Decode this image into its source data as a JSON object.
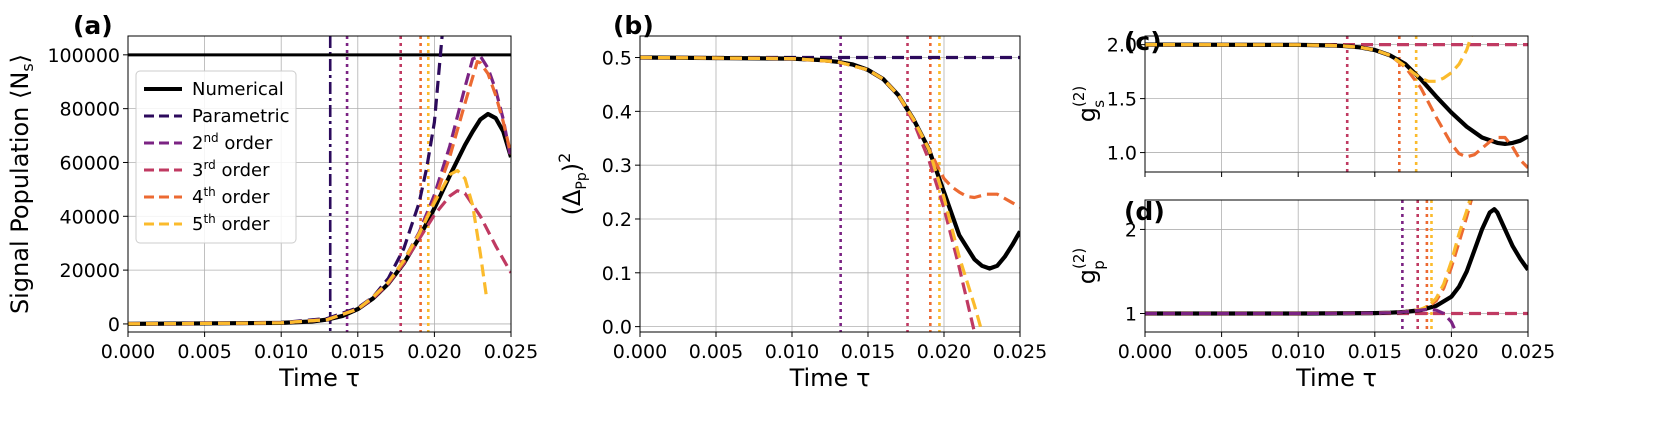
{
  "colors": {
    "numerical": "#000000",
    "parametric": "#2c0a5c",
    "order2": "#7b2383",
    "order3": "#c03a62",
    "order4": "#ec6a32",
    "order5": "#fbbb2c",
    "grid": "#b0b0b0"
  },
  "chart_data": [
    {
      "panel": "(a)",
      "type": "line",
      "xlabel": "Time τ",
      "ylabel": "Signal Population ⟨N",
      "ylabel_sub": "s",
      "ylabel_close": "⟩",
      "xlim": [
        0,
        0.025
      ],
      "ylim": [
        -3000,
        107000
      ],
      "xticks": [
        "0.000",
        "0.005",
        "0.010",
        "0.015",
        "0.020",
        "0.025"
      ],
      "yticks": [
        0,
        20000,
        40000,
        60000,
        80000,
        100000
      ],
      "ytick_labels": [
        "0",
        "20000",
        "40000",
        "60000",
        "80000",
        "100000"
      ],
      "grid": true,
      "legend_position": "center-left",
      "legend": [
        {
          "key": "numerical",
          "label": "Numerical",
          "sup": "",
          "rest": ""
        },
        {
          "key": "parametric",
          "label": "Parametric",
          "sup": "",
          "rest": ""
        },
        {
          "key": "order2",
          "label": "2",
          "sup": "nd",
          "rest": " order"
        },
        {
          "key": "order3",
          "label": "3",
          "sup": "rd",
          "rest": " order"
        },
        {
          "key": "order4",
          "label": "4",
          "sup": "th",
          "rest": " order"
        },
        {
          "key": "order5",
          "label": "5",
          "sup": "th",
          "rest": " order"
        }
      ],
      "vlines": [
        {
          "key": "parametric",
          "x": 0.0132,
          "style": "dashdot"
        },
        {
          "key": "order2",
          "x": 0.0143,
          "style": "dotted"
        },
        {
          "key": "order3",
          "x": 0.0178,
          "style": "dotted"
        },
        {
          "key": "order4",
          "x": 0.0191,
          "style": "dotted"
        },
        {
          "key": "order5",
          "x": 0.0196,
          "style": "dotted"
        }
      ],
      "hlines": [
        {
          "key": "numerical",
          "y": 100000
        }
      ],
      "series": [
        {
          "key": "numerical",
          "style": "solid",
          "x": [
            0,
            0.01,
            0.012,
            0.013,
            0.014,
            0.015,
            0.016,
            0.017,
            0.018,
            0.019,
            0.02,
            0.021,
            0.022,
            0.0225,
            0.023,
            0.0235,
            0.024,
            0.0245,
            0.025
          ],
          "y": [
            0,
            400,
            900,
            1600,
            3000,
            5500,
            9500,
            15000,
            22500,
            32000,
            43000,
            55000,
            66500,
            71500,
            76000,
            78000,
            76500,
            71500,
            62000
          ]
        },
        {
          "key": "parametric",
          "style": "dashed",
          "x": [
            0,
            0.01,
            0.013,
            0.015,
            0.016,
            0.017,
            0.018,
            0.019,
            0.0195,
            0.02,
            0.0205
          ],
          "y": [
            0,
            500,
            2000,
            6000,
            10000,
            17000,
            28000,
            45000,
            58000,
            75000,
            107000
          ]
        },
        {
          "key": "order2",
          "style": "dashed",
          "x": [
            0,
            0.01,
            0.013,
            0.015,
            0.016,
            0.017,
            0.018,
            0.019,
            0.02,
            0.021,
            0.022,
            0.0225,
            0.023,
            0.0235,
            0.024,
            0.0245,
            0.025
          ],
          "y": [
            0,
            400,
            1600,
            5500,
            10000,
            15500,
            23500,
            34000,
            48000,
            66000,
            88000,
            98500,
            99500,
            95000,
            87000,
            76000,
            61000
          ]
        },
        {
          "key": "order3",
          "style": "dashed",
          "x": [
            0,
            0.01,
            0.013,
            0.015,
            0.016,
            0.017,
            0.018,
            0.019,
            0.02,
            0.021,
            0.0215,
            0.022,
            0.023,
            0.024,
            0.025
          ],
          "y": [
            0,
            400,
            1600,
            5500,
            9500,
            15000,
            22500,
            31500,
            40500,
            47500,
            49500,
            48500,
            40000,
            29000,
            19000
          ]
        },
        {
          "key": "order4",
          "style": "dashed",
          "x": [
            0,
            0.01,
            0.013,
            0.015,
            0.016,
            0.017,
            0.018,
            0.019,
            0.02,
            0.021,
            0.022,
            0.0228,
            0.023,
            0.0235,
            0.024,
            0.0245,
            0.025
          ],
          "y": [
            0,
            400,
            1600,
            5500,
            10000,
            15500,
            23500,
            33500,
            46000,
            62000,
            82000,
            97500,
            97000,
            93000,
            85000,
            75000,
            63000
          ]
        },
        {
          "key": "order5",
          "style": "dashed",
          "x": [
            0,
            0.01,
            0.013,
            0.015,
            0.016,
            0.017,
            0.018,
            0.019,
            0.02,
            0.021,
            0.0215,
            0.022,
            0.0225,
            0.023,
            0.0234
          ],
          "y": [
            0,
            400,
            1600,
            5500,
            10000,
            15500,
            23500,
            33500,
            45000,
            55500,
            57000,
            54000,
            44000,
            26000,
            10000
          ]
        }
      ]
    },
    {
      "panel": "(b)",
      "type": "line",
      "xlabel": "Time τ",
      "ylabel": "(Δ",
      "ylabel_sub": "Pp",
      "ylabel_close": ")",
      "ylabel_sup": "2",
      "xlim": [
        0,
        0.025
      ],
      "ylim": [
        -0.01,
        0.54
      ],
      "xticks": [
        "0.000",
        "0.005",
        "0.010",
        "0.015",
        "0.020",
        "0.025"
      ],
      "yticks": [
        0.0,
        0.1,
        0.2,
        0.3,
        0.4,
        0.5
      ],
      "ytick_labels": [
        "0.0",
        "0.1",
        "0.2",
        "0.3",
        "0.4",
        "0.5"
      ],
      "grid": true,
      "vlines": [
        {
          "key": "order2",
          "x": 0.0132,
          "style": "dotted"
        },
        {
          "key": "order3",
          "x": 0.0176,
          "style": "dotted"
        },
        {
          "key": "order4",
          "x": 0.0191,
          "style": "dotted"
        },
        {
          "key": "order5",
          "x": 0.0197,
          "style": "dotted"
        }
      ],
      "series": [
        {
          "key": "parametric",
          "style": "dashed",
          "x": [
            0,
            0.025
          ],
          "y": [
            0.5,
            0.5
          ]
        },
        {
          "key": "numerical",
          "style": "solid",
          "x": [
            0,
            0.01,
            0.012,
            0.013,
            0.014,
            0.015,
            0.016,
            0.017,
            0.018,
            0.019,
            0.02,
            0.021,
            0.022,
            0.0225,
            0.023,
            0.0235,
            0.024,
            0.0245,
            0.025
          ],
          "y": [
            0.5,
            0.498,
            0.495,
            0.492,
            0.487,
            0.477,
            0.46,
            0.43,
            0.385,
            0.33,
            0.25,
            0.17,
            0.125,
            0.113,
            0.108,
            0.113,
            0.13,
            0.152,
            0.177
          ]
        },
        {
          "key": "order3",
          "style": "dashed",
          "x": [
            0,
            0.01,
            0.013,
            0.015,
            0.016,
            0.017,
            0.018,
            0.019,
            0.02,
            0.021,
            0.0215,
            0.022
          ],
          "y": [
            0.5,
            0.498,
            0.492,
            0.477,
            0.46,
            0.43,
            0.38,
            0.31,
            0.22,
            0.11,
            0.05,
            -0.01
          ]
        },
        {
          "key": "order4",
          "style": "dashed",
          "x": [
            0,
            0.01,
            0.013,
            0.015,
            0.016,
            0.017,
            0.018,
            0.019,
            0.02,
            0.0205,
            0.021,
            0.0215,
            0.022,
            0.0228,
            0.0235,
            0.024,
            0.0245,
            0.025
          ],
          "y": [
            0.5,
            0.498,
            0.492,
            0.477,
            0.46,
            0.43,
            0.385,
            0.33,
            0.275,
            0.26,
            0.25,
            0.242,
            0.24,
            0.246,
            0.246,
            0.238,
            0.23,
            0.222
          ]
        },
        {
          "key": "order5",
          "style": "dashed",
          "x": [
            0,
            0.01,
            0.013,
            0.015,
            0.016,
            0.017,
            0.018,
            0.019,
            0.02,
            0.021,
            0.022,
            0.0225
          ],
          "y": [
            0.5,
            0.498,
            0.492,
            0.477,
            0.46,
            0.43,
            0.385,
            0.33,
            0.24,
            0.13,
            0.04,
            -0.01
          ]
        }
      ]
    },
    {
      "panel": "(c)",
      "type": "line",
      "xlabel": "",
      "ylabel": "g",
      "ylabel_sub": "s",
      "ylabel_sup": "(2)",
      "xlim": [
        0,
        0.025
      ],
      "ylim": [
        0.82,
        2.08
      ],
      "xticks": [],
      "yticks": [
        1.0,
        1.5,
        2.0
      ],
      "ytick_labels": [
        "1.0",
        "1.5",
        "2.0"
      ],
      "grid": true,
      "vlines": [
        {
          "key": "order3",
          "x": 0.0132,
          "style": "dotted"
        },
        {
          "key": "order4",
          "x": 0.0166,
          "style": "dotted"
        },
        {
          "key": "order5",
          "x": 0.0177,
          "style": "dotted"
        }
      ],
      "series": [
        {
          "key": "order3",
          "style": "dashed",
          "x": [
            0,
            0.025
          ],
          "y": [
            2.0,
            2.0
          ]
        },
        {
          "key": "numerical",
          "style": "solid",
          "x": [
            0,
            0.01,
            0.012,
            0.013,
            0.014,
            0.015,
            0.016,
            0.017,
            0.018,
            0.019,
            0.02,
            0.021,
            0.022,
            0.023,
            0.0235,
            0.024,
            0.0245,
            0.025
          ],
          "y": [
            2.0,
            1.998,
            1.993,
            1.987,
            1.975,
            1.95,
            1.9,
            1.82,
            1.68,
            1.52,
            1.37,
            1.24,
            1.14,
            1.09,
            1.08,
            1.09,
            1.11,
            1.15
          ]
        },
        {
          "key": "order4",
          "style": "dashed",
          "x": [
            0,
            0.01,
            0.012,
            0.013,
            0.014,
            0.015,
            0.016,
            0.017,
            0.018,
            0.019,
            0.02,
            0.0205,
            0.021,
            0.0215,
            0.022,
            0.0225,
            0.023,
            0.0235,
            0.024,
            0.0245,
            0.025
          ],
          "y": [
            2.0,
            1.998,
            1.993,
            1.987,
            1.975,
            1.95,
            1.9,
            1.79,
            1.6,
            1.33,
            1.08,
            0.99,
            0.96,
            0.98,
            1.04,
            1.1,
            1.14,
            1.14,
            1.05,
            0.93,
            0.86
          ]
        },
        {
          "key": "order5",
          "style": "dashed",
          "x": [
            0,
            0.01,
            0.012,
            0.013,
            0.014,
            0.015,
            0.016,
            0.017,
            0.0175,
            0.018,
            0.0185,
            0.019,
            0.0195,
            0.02,
            0.0205,
            0.021,
            0.0213
          ],
          "y": [
            2.0,
            1.998,
            1.993,
            1.987,
            1.975,
            1.95,
            1.9,
            1.8,
            1.74,
            1.69,
            1.66,
            1.66,
            1.69,
            1.74,
            1.82,
            1.95,
            2.08
          ]
        }
      ]
    },
    {
      "panel": "(d)",
      "type": "line",
      "xlabel": "Time τ",
      "ylabel": "g",
      "ylabel_sub": "p",
      "ylabel_sup": "(2)",
      "xlim": [
        0,
        0.025
      ],
      "ylim": [
        0.78,
        2.35
      ],
      "xticks": [
        "0.000",
        "0.005",
        "0.010",
        "0.015",
        "0.020",
        "0.025"
      ],
      "yticks": [
        1,
        2
      ],
      "ytick_labels": [
        "1",
        "2"
      ],
      "grid": true,
      "vlines": [
        {
          "key": "order2",
          "x": 0.0168,
          "style": "dotted"
        },
        {
          "key": "order3",
          "x": 0.0178,
          "style": "dotted"
        },
        {
          "key": "order4",
          "x": 0.0184,
          "style": "dotted"
        },
        {
          "key": "order5",
          "x": 0.0187,
          "style": "dotted"
        }
      ],
      "series": [
        {
          "key": "order3",
          "style": "dashed",
          "x": [
            0,
            0.025
          ],
          "y": [
            1.0,
            1.0
          ]
        },
        {
          "key": "numerical",
          "style": "solid",
          "x": [
            0,
            0.01,
            0.015,
            0.016,
            0.017,
            0.018,
            0.019,
            0.02,
            0.0205,
            0.021,
            0.0215,
            0.022,
            0.0225,
            0.0228,
            0.023,
            0.0235,
            0.024,
            0.0245,
            0.025
          ],
          "y": [
            1.0,
            1.0,
            1.005,
            1.01,
            1.02,
            1.04,
            1.09,
            1.2,
            1.32,
            1.5,
            1.75,
            2.0,
            2.2,
            2.24,
            2.2,
            2.0,
            1.8,
            1.65,
            1.52
          ]
        },
        {
          "key": "order4",
          "style": "dashed",
          "x": [
            0,
            0.01,
            0.015,
            0.016,
            0.017,
            0.018,
            0.0185,
            0.019,
            0.0195,
            0.02,
            0.0205,
            0.021,
            0.0213
          ],
          "y": [
            1.0,
            1.0,
            1.005,
            1.01,
            1.02,
            1.05,
            1.08,
            1.15,
            1.3,
            1.55,
            1.85,
            2.15,
            2.35
          ]
        },
        {
          "key": "order5",
          "style": "dashed",
          "x": [
            0,
            0.01,
            0.015,
            0.016,
            0.017,
            0.018,
            0.0185,
            0.019,
            0.0195,
            0.02,
            0.0205,
            0.021,
            0.0212
          ],
          "y": [
            1.0,
            1.0,
            1.005,
            1.01,
            1.02,
            1.05,
            1.09,
            1.18,
            1.35,
            1.62,
            1.95,
            2.22,
            2.35
          ]
        },
        {
          "key": "order2",
          "style": "dashed",
          "x": [
            0,
            0.01,
            0.015,
            0.016,
            0.017,
            0.018,
            0.0185,
            0.019,
            0.0195,
            0.02,
            0.0203
          ],
          "y": [
            1.0,
            1.0,
            1.005,
            1.01,
            1.02,
            1.04,
            1.05,
            1.04,
            1.0,
            0.9,
            0.78
          ]
        }
      ]
    }
  ]
}
